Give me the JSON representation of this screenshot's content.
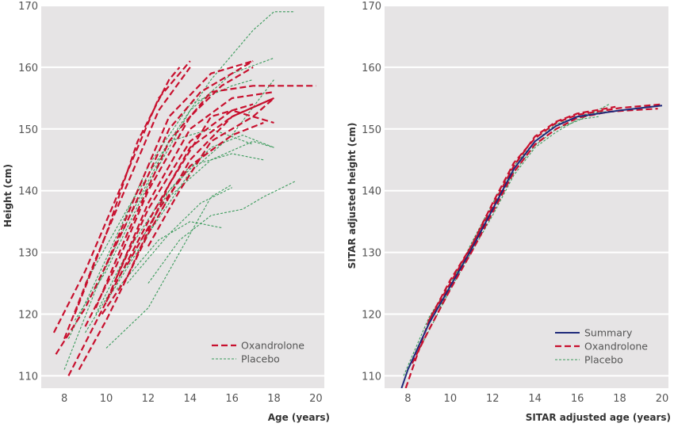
{
  "chart_data": [
    {
      "type": "line",
      "xlabel": "Age (years)",
      "ylabel": "Height (cm)",
      "xlim": [
        6.9,
        20.4
      ],
      "ylim": [
        108,
        170
      ],
      "xticks": [
        8,
        10,
        12,
        14,
        16,
        18,
        20
      ],
      "yticks": [
        110,
        120,
        130,
        140,
        150,
        160,
        170
      ],
      "grid": "horizontal",
      "legend": "bottom-right",
      "series": [
        {
          "name": "Oxandrolone",
          "color": "#c8102e",
          "style": "long-dash",
          "curves": [
            [
              [
                7.5,
                117
              ],
              [
                9,
                127
              ],
              [
                11,
                143
              ],
              [
                12.5,
                155
              ],
              [
                14,
                161
              ]
            ],
            [
              [
                7.6,
                113.5
              ],
              [
                9,
                121
              ],
              [
                11,
                135
              ],
              [
                13,
                150
              ],
              [
                14.5,
                156
              ],
              [
                17,
                161
              ]
            ],
            [
              [
                8.2,
                110
              ],
              [
                10,
                122
              ],
              [
                12,
                138
              ],
              [
                14,
                150
              ],
              [
                16,
                155
              ],
              [
                18,
                156
              ]
            ],
            [
              [
                8.7,
                111
              ],
              [
                10,
                119
              ],
              [
                12,
                133
              ],
              [
                14,
                145
              ],
              [
                16,
                152
              ],
              [
                18,
                155
              ]
            ],
            [
              [
                9,
                118
              ],
              [
                10.5,
                128
              ],
              [
                12,
                140
              ],
              [
                14,
                152
              ],
              [
                15.5,
                157
              ],
              [
                17,
                160
              ]
            ],
            [
              [
                8.5,
                120
              ],
              [
                10,
                133
              ],
              [
                11.5,
                148
              ],
              [
                13,
                158
              ],
              [
                13.5,
                160
              ]
            ],
            [
              [
                9.5,
                121
              ],
              [
                11,
                133
              ],
              [
                13,
                148
              ],
              [
                15,
                156
              ],
              [
                17,
                157
              ],
              [
                20,
                157
              ]
            ],
            [
              [
                10,
                122
              ],
              [
                12,
                135
              ],
              [
                14,
                147
              ],
              [
                16,
                152
              ],
              [
                18,
                155
              ]
            ],
            [
              [
                10.5,
                126
              ],
              [
                12,
                137
              ],
              [
                14,
                148
              ],
              [
                16,
                153
              ],
              [
                18,
                151
              ]
            ],
            [
              [
                11,
                128
              ],
              [
                12.5,
                137
              ],
              [
                14,
                144
              ],
              [
                16,
                149
              ],
              [
                17.5,
                151
              ]
            ],
            [
              [
                8,
                116
              ],
              [
                9.5,
                129
              ],
              [
                11,
                141
              ],
              [
                12.5,
                153
              ],
              [
                14,
                160
              ]
            ],
            [
              [
                9.8,
                120
              ],
              [
                11,
                126
              ],
              [
                13,
                141
              ],
              [
                15,
                152
              ],
              [
                17,
                154
              ]
            ],
            [
              [
                12,
                131
              ],
              [
                13.5,
                140
              ],
              [
                15,
                148
              ],
              [
                17,
                152
              ],
              [
                18,
                155
              ]
            ],
            [
              [
                10,
                128
              ],
              [
                11.5,
                140
              ],
              [
                13,
                152
              ],
              [
                15,
                159
              ],
              [
                17,
                161
              ]
            ]
          ]
        },
        {
          "name": "Placebo",
          "color": "#3a9a5b",
          "style": "short-dash",
          "curves": [
            [
              [
                8,
                111
              ],
              [
                9.5,
                124
              ],
              [
                11,
                135
              ],
              [
                13,
                148
              ],
              [
                15,
                158
              ],
              [
                17,
                166
              ],
              [
                18,
                169
              ],
              [
                19,
                169
              ]
            ],
            [
              [
                10,
                114.5
              ],
              [
                12,
                121
              ],
              [
                14,
                133
              ],
              [
                15,
                139
              ],
              [
                16,
                141
              ]
            ],
            [
              [
                12,
                125
              ],
              [
                13.5,
                132
              ],
              [
                15,
                136
              ],
              [
                16.5,
                137
              ],
              [
                17.5,
                139
              ],
              [
                19,
                141.5
              ]
            ],
            [
              [
                8.5,
                119
              ],
              [
                10,
                127
              ],
              [
                12,
                141
              ],
              [
                14,
                153
              ],
              [
                16,
                159
              ],
              [
                18,
                161.5
              ]
            ],
            [
              [
                9,
                117
              ],
              [
                11,
                128
              ],
              [
                13,
                140
              ],
              [
                15,
                147
              ],
              [
                16.5,
                149
              ],
              [
                18,
                147
              ]
            ],
            [
              [
                9.5,
                120
              ],
              [
                11,
                130
              ],
              [
                12.5,
                138
              ],
              [
                14,
                144
              ],
              [
                16,
                146
              ],
              [
                17.5,
                145
              ]
            ],
            [
              [
                10,
                122
              ],
              [
                12,
                133
              ],
              [
                14,
                143
              ],
              [
                16,
                149
              ],
              [
                18,
                158
              ]
            ],
            [
              [
                11,
                125
              ],
              [
                13,
                133
              ],
              [
                14.5,
                138
              ],
              [
                16,
                140.5
              ]
            ],
            [
              [
                8.2,
                116
              ],
              [
                10,
                129
              ],
              [
                12,
                144
              ],
              [
                14,
                154
              ],
              [
                16,
                157
              ],
              [
                17,
                158
              ]
            ],
            [
              [
                10.5,
                124
              ],
              [
                12.5,
                132
              ],
              [
                14,
                135
              ],
              [
                15.5,
                134
              ]
            ],
            [
              [
                9,
                125
              ],
              [
                11,
                137
              ],
              [
                13,
                148
              ],
              [
                15,
                150
              ],
              [
                17,
                147.5
              ]
            ],
            [
              [
                11.5,
                130
              ],
              [
                13,
                139
              ],
              [
                15,
                145
              ],
              [
                17,
                148
              ],
              [
                18,
                147
              ]
            ]
          ]
        }
      ]
    },
    {
      "type": "line",
      "xlabel": "SITAR adjusted age (years)",
      "ylabel": "SITAR adjusted height (cm)",
      "xlim": [
        6.9,
        20.3
      ],
      "ylim": [
        108,
        170
      ],
      "xticks": [
        8,
        10,
        12,
        14,
        16,
        18,
        20
      ],
      "yticks": [
        110,
        120,
        130,
        140,
        150,
        160,
        170
      ],
      "grid": "horizontal",
      "legend": "bottom-right",
      "series": [
        {
          "name": "Summary",
          "color": "#1f2a7a",
          "style": "solid",
          "curves": [
            [
              [
                7.7,
                108
              ],
              [
                8,
                111
              ],
              [
                9,
                118.5
              ],
              [
                10,
                124.5
              ],
              [
                11,
                130.5
              ],
              [
                12,
                137
              ],
              [
                13,
                143.5
              ],
              [
                14,
                148
              ],
              [
                15,
                150.5
              ],
              [
                16,
                152
              ],
              [
                18,
                153
              ],
              [
                20,
                153.8
              ]
            ]
          ]
        },
        {
          "name": "Oxandrolone",
          "color": "#c8102e",
          "style": "long-dash",
          "curves": [
            [
              [
                7.9,
                108
              ],
              [
                9,
                119
              ],
              [
                10,
                125.5
              ],
              [
                11,
                131
              ],
              [
                12,
                138
              ],
              [
                13,
                144.5
              ],
              [
                14,
                148.5
              ],
              [
                15,
                151
              ],
              [
                16,
                152.3
              ],
              [
                18,
                153.4
              ],
              [
                20,
                154
              ]
            ],
            [
              [
                8.2,
                112
              ],
              [
                9,
                117.5
              ],
              [
                10,
                124
              ],
              [
                11,
                130
              ],
              [
                12,
                136.5
              ],
              [
                13,
                143
              ],
              [
                14,
                147.5
              ],
              [
                15,
                150
              ],
              [
                16,
                151.8
              ],
              [
                17.5,
                152.8
              ],
              [
                19.8,
                153.3
              ]
            ],
            [
              [
                9,
                119
              ],
              [
                10,
                125
              ],
              [
                11,
                131
              ],
              [
                12,
                137.5
              ],
              [
                13,
                144
              ],
              [
                14,
                148.8
              ],
              [
                15,
                151.2
              ],
              [
                16,
                152.5
              ],
              [
                17.8,
                153.6
              ]
            ]
          ]
        },
        {
          "name": "Placebo",
          "color": "#3a9a5b",
          "style": "short-dash",
          "curves": [
            [
              [
                7.8,
                110
              ],
              [
                9,
                119.5
              ],
              [
                10,
                125
              ],
              [
                11,
                131
              ],
              [
                12,
                137
              ],
              [
                13,
                143
              ],
              [
                14,
                147.3
              ],
              [
                15,
                150
              ],
              [
                16,
                151.3
              ],
              [
                17.5,
                154
              ]
            ],
            [
              [
                8.5,
                114
              ],
              [
                10,
                124
              ],
              [
                11,
                130
              ],
              [
                12,
                136
              ],
              [
                13,
                142.5
              ],
              [
                14,
                147
              ],
              [
                15,
                149.5
              ],
              [
                16,
                151.5
              ],
              [
                17,
                152
              ]
            ],
            [
              [
                9.5,
                121
              ],
              [
                11,
                131.5
              ],
              [
                12,
                138
              ],
              [
                13,
                144
              ],
              [
                14,
                148
              ],
              [
                15,
                150.8
              ],
              [
                16.5,
                152.5
              ],
              [
                18,
                153
              ]
            ]
          ]
        }
      ]
    }
  ]
}
